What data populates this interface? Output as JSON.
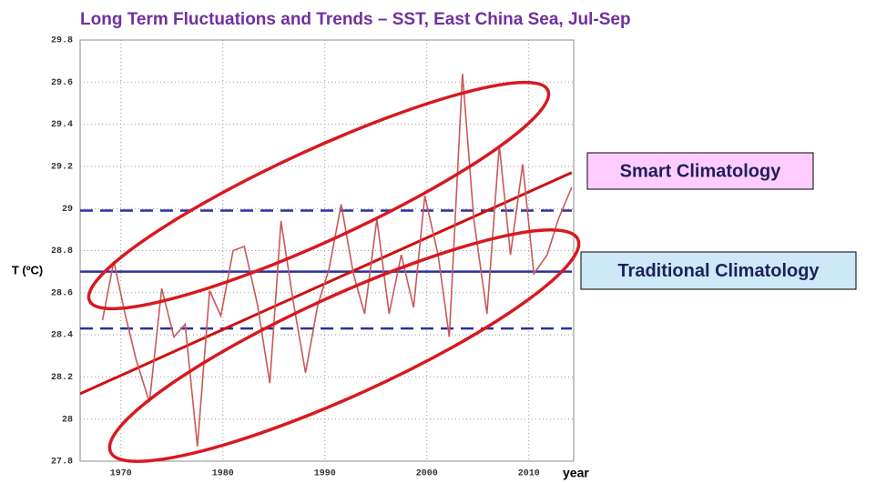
{
  "chart_data": {
    "type": "line",
    "title": "Long Term Fluctuations and Trends – SST, East China Sea, Jul-Sep",
    "ylabel": "T (ºC)",
    "xlabel": "year",
    "x": [
      1968.2,
      1969.3,
      1970.4,
      1971.5,
      1972.8,
      1974.0,
      1975.2,
      1976.3,
      1977.5,
      1978.7,
      1979.8,
      1981.0,
      1982.1,
      1983.4,
      1984.6,
      1985.7,
      1986.9,
      1988.1,
      1989.3,
      1990.4,
      1991.6,
      1992.8,
      1993.9,
      1995.1,
      1996.3,
      1997.5,
      1998.7,
      1999.8,
      2001.1,
      2002.2,
      2003.5,
      2004.6,
      2005.9,
      2007.1,
      2008.2,
      2009.4,
      2010.5,
      2011.8,
      2012.9,
      2014.2
    ],
    "series": [
      {
        "color": "#c8585a",
        "values": [
          28.47,
          28.75,
          28.5,
          28.28,
          28.08,
          28.62,
          28.39,
          28.45,
          27.87,
          28.61,
          28.49,
          28.8,
          28.82,
          28.54,
          28.17,
          28.94,
          28.56,
          28.22,
          28.54,
          28.71,
          29.02,
          28.69,
          28.5,
          28.95,
          28.5,
          28.78,
          28.53,
          29.06,
          28.78,
          28.39,
          29.64,
          28.95,
          28.5,
          29.3,
          28.78,
          29.21,
          28.69,
          28.78,
          28.95,
          29.1
        ]
      }
    ],
    "trend": {
      "color": "#cc1111",
      "x": [
        1966.0,
        2014.2
      ],
      "values": [
        28.12,
        29.17
      ]
    },
    "reference_lines": [
      {
        "value": 28.99,
        "color": "#2b2f9e",
        "style": "dashed"
      },
      {
        "value": 28.7,
        "color": "#2b2f9e",
        "style": "solid"
      },
      {
        "value": 28.43,
        "color": "#2b2f9e",
        "style": "dashed"
      }
    ],
    "annotations": [
      {
        "text": "Smart Climatology",
        "background": "#ffccff"
      },
      {
        "text": "Traditional Climatology",
        "background": "#cde8f6"
      }
    ],
    "xlim": [
      1966.0,
      2014.4
    ],
    "ylim": [
      27.8,
      29.8
    ],
    "xticks": [
      1970,
      1980,
      1990,
      2000,
      2010
    ],
    "yticks": [
      27.8,
      28,
      28.2,
      28.4,
      28.6,
      28.8,
      29,
      29.2,
      29.4,
      29.6,
      29.8
    ],
    "grid": true
  }
}
